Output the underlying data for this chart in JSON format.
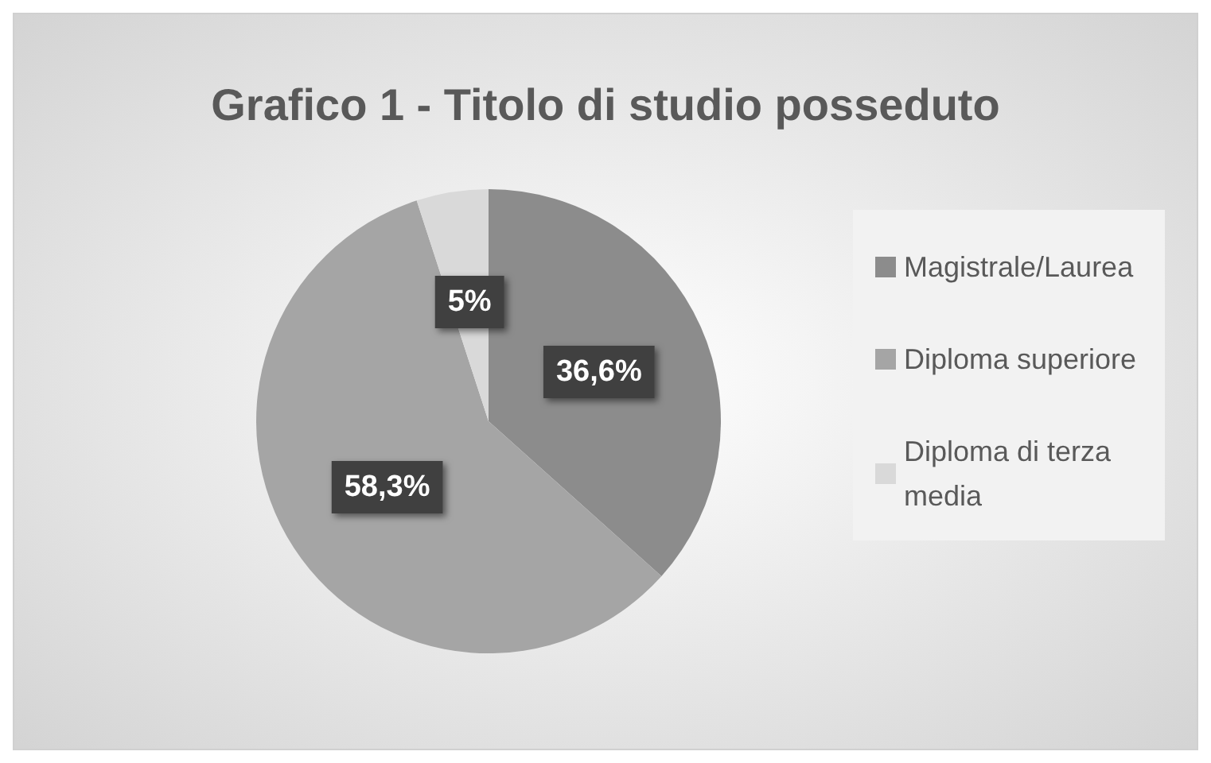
{
  "chart_data": {
    "type": "pie",
    "title": "Grafico 1 - Titolo di studio posseduto",
    "categories": [
      "Magistrale/Laurea",
      "Diploma superiore",
      "Diploma di terza media"
    ],
    "values": [
      36.6,
      58.3,
      5
    ],
    "colors": [
      "#8c8c8c",
      "#a5a5a5",
      "#d9d9d9"
    ],
    "value_labels": [
      "36,6%",
      "58,3%",
      "5%"
    ],
    "legend": "right"
  }
}
